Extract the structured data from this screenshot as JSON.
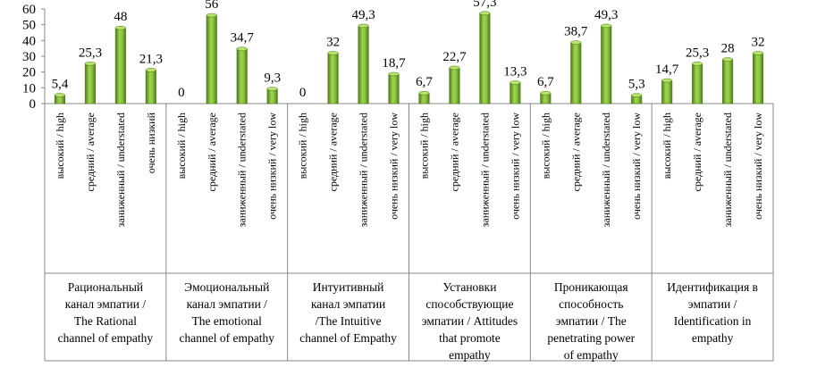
{
  "chart_data": {
    "type": "bar",
    "title": "",
    "xlabel": "",
    "ylabel": "",
    "ylim": [
      0,
      60
    ],
    "yticks": [
      0,
      10,
      20,
      30,
      40,
      50,
      60
    ],
    "grid": false,
    "legend": "none",
    "bar_color": "#8cc63f",
    "bar_dark_color": "#4e7a1b",
    "groups": [
      {
        "label_lines": [
          "Рациональный",
          "канал эмпатии /",
          "The Rational",
          "channel of empathy"
        ],
        "categories": [
          "высокий / high",
          "средний / average",
          "заниженный / understated",
          "очень низкий"
        ],
        "values": [
          5.4,
          25.3,
          48,
          21.3
        ],
        "value_labels": [
          "5,4",
          "25,3",
          "48",
          "21,3"
        ]
      },
      {
        "label_lines": [
          "Эмоциональный",
          "канал эмпатии /",
          "The emotional",
          "channel of empathy"
        ],
        "categories": [
          "высокий / high",
          "средний / average",
          "заниженный / understated",
          "очень низкий / very low"
        ],
        "values": [
          0,
          56,
          34.7,
          9.3
        ],
        "value_labels": [
          "0",
          "56",
          "34,7",
          "9,3"
        ]
      },
      {
        "label_lines": [
          "Интуитивный",
          "канал эмпатии",
          "/The Intuitive",
          "channel of Empathy"
        ],
        "categories": [
          "высокий / high",
          "средний / average",
          "заниженный / understated",
          "очень низкий / very low"
        ],
        "values": [
          0,
          32,
          49.3,
          18.7
        ],
        "value_labels": [
          "0",
          "32",
          "49,3",
          "18,7"
        ]
      },
      {
        "label_lines": [
          "Установки",
          "способствующие",
          "эмпатии / Attitudes",
          "that promote",
          "empathy"
        ],
        "categories": [
          "высокий / high",
          "средний / average",
          "заниженный / understated",
          "очень низкий / very low"
        ],
        "values": [
          6.7,
          22.7,
          57.3,
          13.3
        ],
        "value_labels": [
          "6,7",
          "22,7",
          "57,3",
          "13,3"
        ]
      },
      {
        "label_lines": [
          "Проникающая",
          "способность",
          "эмпатии / The",
          "penetrating power",
          "of empathy"
        ],
        "categories": [
          "высокий / high",
          "средний / average",
          "заниженный / understated",
          "очень низкий / very low"
        ],
        "values": [
          6.7,
          38.7,
          49.3,
          5.3
        ],
        "value_labels": [
          "6,7",
          "38,7",
          "49,3",
          "5,3"
        ]
      },
      {
        "label_lines": [
          "Идентификация в",
          "эмпатии /",
          "Identification in",
          "empathy"
        ],
        "categories": [
          "высокий / high",
          "средний / average",
          "заниженный / understated",
          "очень низкий / very low"
        ],
        "values": [
          14.7,
          25.3,
          28,
          32
        ],
        "value_labels": [
          "14,7",
          "25,3",
          "28",
          "32"
        ]
      }
    ]
  }
}
